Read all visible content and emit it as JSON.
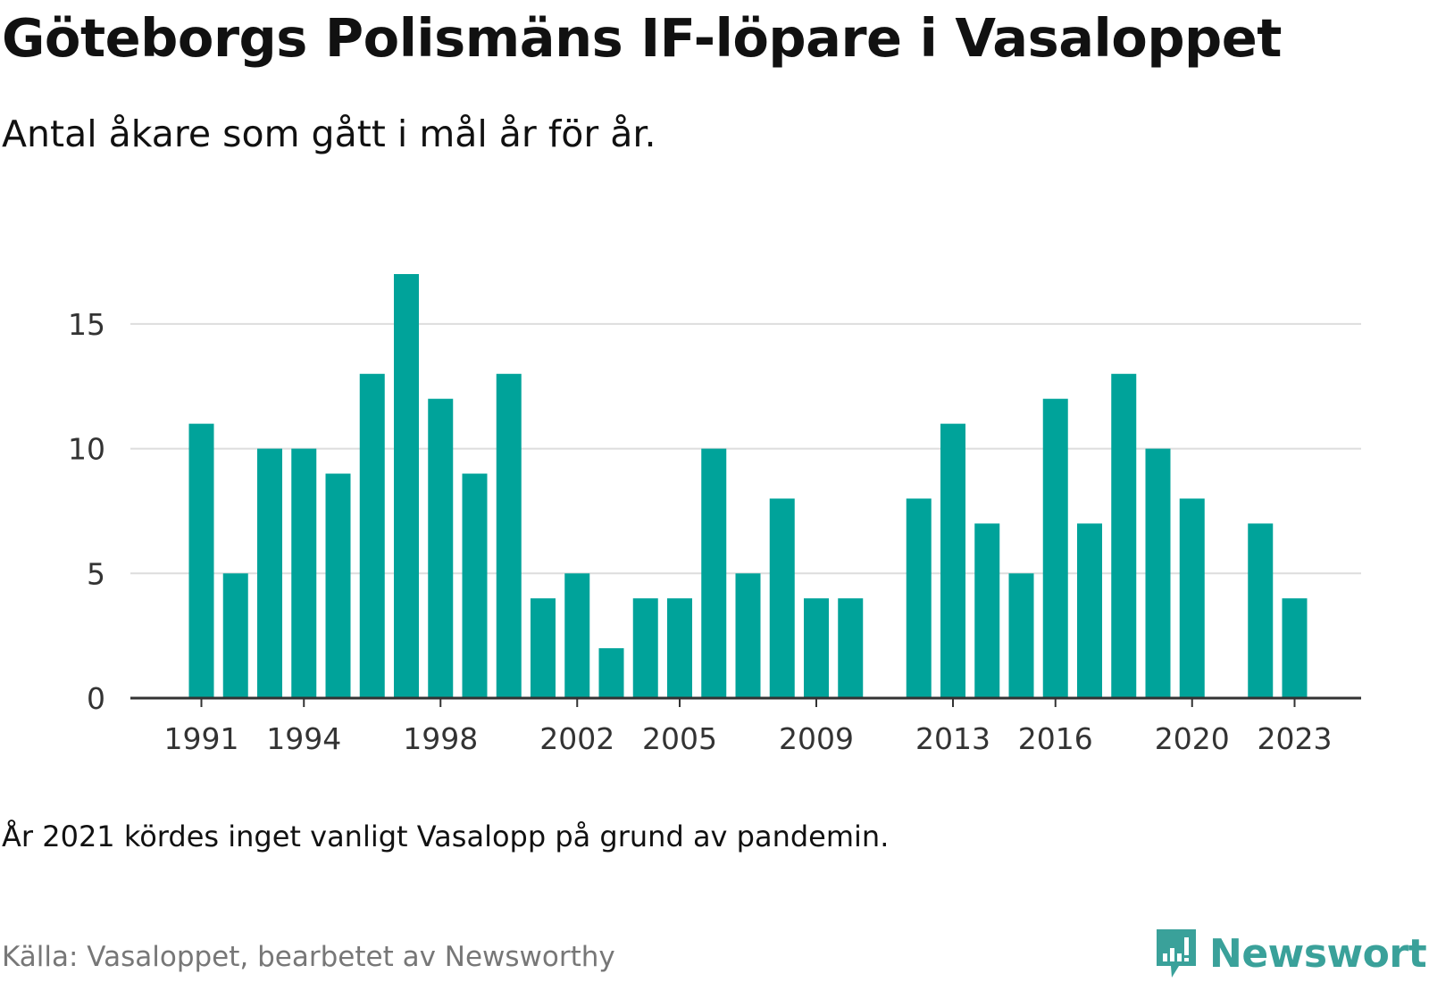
{
  "header": {
    "title": "Göteborgs Polismäns IF-löpare i Vasaloppet",
    "subtitle": "Antal åkare som gått i mål år för år."
  },
  "footer": {
    "note": "År 2021 kördes inget vanligt Vasalopp på grund av pandemin.",
    "source": "Källa: Vasaloppet, bearbetet av Newsworthy",
    "brand": "Newsworthy",
    "brand_icon": "newsworthy-logo-icon"
  },
  "colors": {
    "bar": "#00a39a",
    "grid": "#dddddd",
    "axis": "#333333",
    "brand": "#3aa19a"
  },
  "chart_data": {
    "type": "bar",
    "title": "Göteborgs Polismäns IF-löpare i Vasaloppet",
    "subtitle": "Antal åkare som gått i mål år för år.",
    "xlabel": "",
    "ylabel": "",
    "categories": [
      1991,
      1992,
      1993,
      1994,
      1995,
      1996,
      1997,
      1998,
      1999,
      2000,
      2001,
      2002,
      2003,
      2004,
      2005,
      2006,
      2007,
      2008,
      2009,
      2010,
      2011,
      2012,
      2013,
      2014,
      2015,
      2016,
      2017,
      2018,
      2019,
      2020,
      2021,
      2022,
      2023
    ],
    "values": [
      11,
      5,
      10,
      10,
      9,
      13,
      17,
      12,
      9,
      13,
      4,
      5,
      2,
      4,
      4,
      10,
      5,
      8,
      4,
      4,
      null,
      8,
      11,
      7,
      5,
      12,
      7,
      13,
      10,
      8,
      null,
      7,
      4
    ],
    "x_tick_labels": [
      "1991",
      "1994",
      "1998",
      "2002",
      "2005",
      "2009",
      "2013",
      "2016",
      "2020",
      "2023"
    ],
    "y_ticks": [
      0,
      5,
      10,
      15
    ],
    "ylim": [
      0,
      17
    ],
    "grid": true,
    "legend": "none"
  }
}
